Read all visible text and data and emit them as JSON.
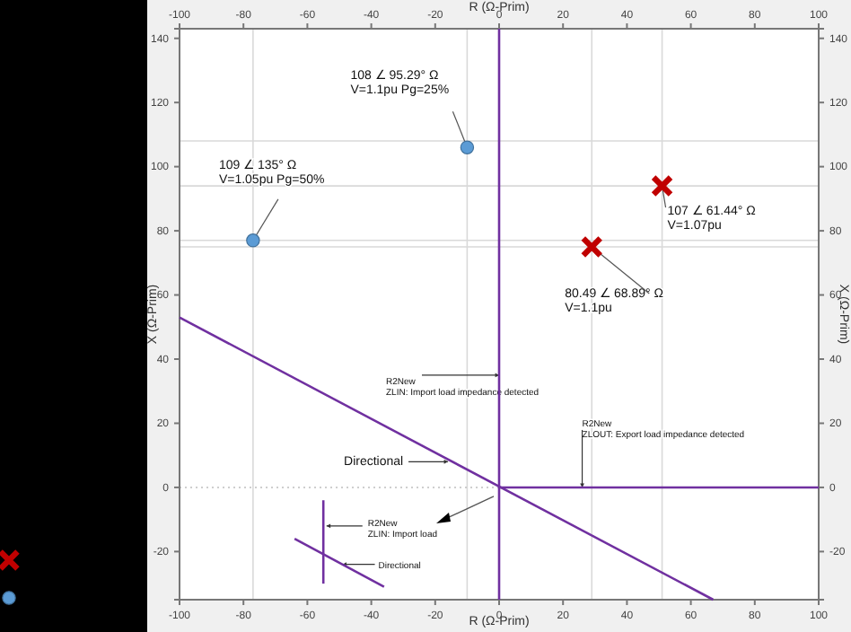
{
  "chart_data": {
    "type": "line",
    "xlabel": "R (Ω-Prim)",
    "x2label": "R (Ω-Prim)",
    "ylabel": "X (Ω-Prim)",
    "y2label": "X (Ω-Prim)",
    "xlim": [
      -100,
      100
    ],
    "xticks": [
      -100,
      -80,
      -60,
      -40,
      -20,
      0,
      20,
      40,
      60,
      80,
      100
    ],
    "x2lim": [
      -100,
      100
    ],
    "x2ticks": [
      -100,
      -80,
      -60,
      -40,
      -20,
      0,
      20,
      40,
      60,
      80,
      100
    ],
    "ylim": [
      -35,
      143
    ],
    "yticks": [
      -20,
      0,
      20,
      40,
      60,
      80,
      100,
      120,
      140
    ],
    "y2lim": [
      -35,
      143
    ],
    "y2ticks": [
      -20,
      0,
      20,
      40,
      60,
      80,
      100,
      120,
      140
    ],
    "grid": false,
    "series": [
      {
        "color": "#7030a0",
        "x": [
          0,
          0
        ],
        "values": [
          -35,
          143
        ]
      },
      {
        "color": "#7030a0",
        "x": [
          0,
          100
        ],
        "values": [
          0,
          0
        ]
      },
      {
        "color": "#7030a0",
        "x": [
          -100,
          67
        ],
        "values": [
          53,
          -35
        ]
      },
      {
        "color": "#7030a0",
        "x": [
          -55,
          -55
        ],
        "values": [
          -4,
          -30
        ]
      },
      {
        "color": "#7030a0",
        "x": [
          -64,
          -36
        ],
        "values": [
          -16,
          -31
        ]
      },
      {
        "type": "scatter",
        "marker": "cross",
        "color": "#c00000",
        "x": [
          51,
          29
        ],
        "values": [
          94,
          75
        ]
      },
      {
        "type": "scatter",
        "marker": "circle",
        "color": "#5b9bd5",
        "x": [
          -10,
          -77
        ],
        "values": [
          106,
          77
        ]
      }
    ],
    "ref_lines": [
      {
        "axis": "x",
        "value": -77,
        "color": "#d9d9d9"
      },
      {
        "axis": "x",
        "value": -10,
        "color": "#d9d9d9"
      },
      {
        "axis": "x",
        "value": 29,
        "color": "#d9d9d9"
      },
      {
        "axis": "x",
        "value": 51,
        "color": "#d9d9d9"
      },
      {
        "axis": "y",
        "value": 108,
        "color": "#d9d9d9"
      },
      {
        "axis": "y",
        "value": 94,
        "color": "#d9d9d9"
      },
      {
        "axis": "y",
        "value": 77,
        "color": "#d9d9d9"
      },
      {
        "axis": "y",
        "value": 75,
        "color": "#d9d9d9"
      },
      {
        "axis": "y",
        "value": 0,
        "color": "#bfbfbf",
        "line_style": "dotted"
      }
    ],
    "annotations": [
      {
        "text": "108 ∠ 95.29° Ω\nV=1.1pu Pg=25%",
        "x": -10,
        "y": 106
      },
      {
        "text": "109 ∠ 135° Ω\nV=1.05pu Pg=50%",
        "x": -77,
        "y": 77
      },
      {
        "text": "107 ∠ 61.44° Ω\nV=1.07pu",
        "x": 51,
        "y": 94
      },
      {
        "text": "80.49 ∠ 68.89° Ω\nV=1.1pu",
        "x": 29,
        "y": 75
      },
      {
        "text": "R2New\nZLIN: Import load impedance detected",
        "x": 0,
        "y": 35
      },
      {
        "text": "R2New\nZLOUT: Export load impedance detected",
        "x": 26,
        "y": 0
      },
      {
        "text": "Directional",
        "x": -16,
        "y": 8
      },
      {
        "text": "R2New\nZLIN: Import load",
        "x": -54,
        "y": -12
      },
      {
        "text": "Directional",
        "x": -49,
        "y": -24
      }
    ]
  }
}
